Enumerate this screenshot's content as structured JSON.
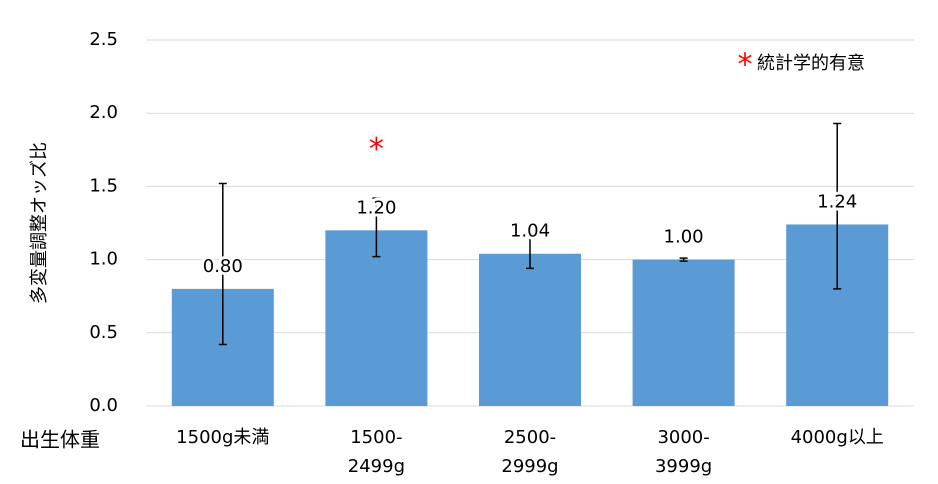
{
  "chart_data": {
    "type": "bar",
    "y_label": "多変量調整オッズ比",
    "x_label": "出生体重",
    "categories": [
      [
        "1500g未満"
      ],
      [
        "1500-",
        "2499g"
      ],
      [
        "2500-",
        "2999g"
      ],
      [
        "3000-",
        "3999g"
      ],
      [
        "4000g以上"
      ]
    ],
    "series": [
      {
        "color": "#5b9bd5",
        "values": [
          0.8,
          1.2,
          1.04,
          1.0,
          1.24
        ],
        "value_labels": [
          "0.80",
          "1.20",
          "1.04",
          "1.00",
          "1.24"
        ],
        "ci_lower": [
          0.42,
          1.02,
          0.94,
          0.99,
          0.8
        ],
        "ci_upper": [
          1.52,
          1.42,
          1.16,
          1.01,
          1.93
        ]
      }
    ],
    "annotations": [
      {
        "text": "*",
        "category": 1
      }
    ],
    "legend": {
      "symbol": "*",
      "text": "統計学的有意",
      "symbol_color": "#ff0000",
      "position": "upper right"
    },
    "ylim": [
      0,
      2.5
    ],
    "yticks": [
      {
        "value": 0,
        "label": "0.0"
      },
      {
        "value": 0.5,
        "label": "0.5"
      },
      {
        "value": 1,
        "label": "1.0"
      },
      {
        "value": 1.5,
        "label": "1.5"
      },
      {
        "value": 2,
        "label": "2.0"
      },
      {
        "value": 2.5,
        "label": "2.5"
      }
    ],
    "grid": true
  }
}
